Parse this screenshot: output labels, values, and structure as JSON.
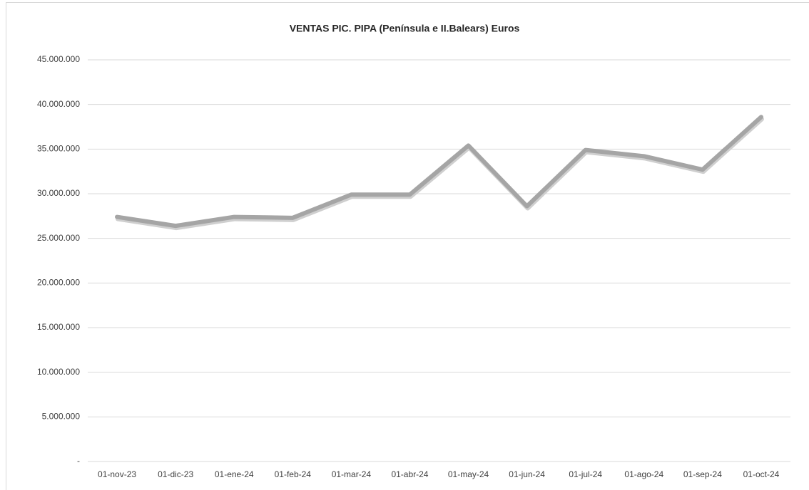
{
  "chart_data": {
    "type": "line",
    "title": "VENTAS PIC. PIPA  (Península e II.Balears) Euros",
    "categories": [
      "01-nov-23",
      "01-dic-23",
      "01-ene-24",
      "01-feb-24",
      "01-mar-24",
      "01-abr-24",
      "01-may-24",
      "01-jun-24",
      "01-jul-24",
      "01-ago-24",
      "01-sep-24",
      "01-oct-24"
    ],
    "series": [
      {
        "name": "VENTAS PIC. PIPA",
        "color": "#a5a5a5",
        "values": [
          27400000,
          26400000,
          27400000,
          27300000,
          29900000,
          29900000,
          35400000,
          28600000,
          34900000,
          34200000,
          32700000,
          38600000
        ]
      }
    ],
    "ylim": [
      0,
      45000000
    ],
    "yticks": [
      {
        "value": 0,
        "label": "-"
      },
      {
        "value": 5000000,
        "label": "5.000.000"
      },
      {
        "value": 10000000,
        "label": "10.000.000"
      },
      {
        "value": 15000000,
        "label": "15.000.000"
      },
      {
        "value": 20000000,
        "label": "20.000.000"
      },
      {
        "value": 25000000,
        "label": "25.000.000"
      },
      {
        "value": 30000000,
        "label": "30.000.000"
      },
      {
        "value": 35000000,
        "label": "35.000.000"
      },
      {
        "value": 40000000,
        "label": "40.000.000"
      },
      {
        "value": 45000000,
        "label": "45.000.000"
      }
    ],
    "grid": true
  }
}
